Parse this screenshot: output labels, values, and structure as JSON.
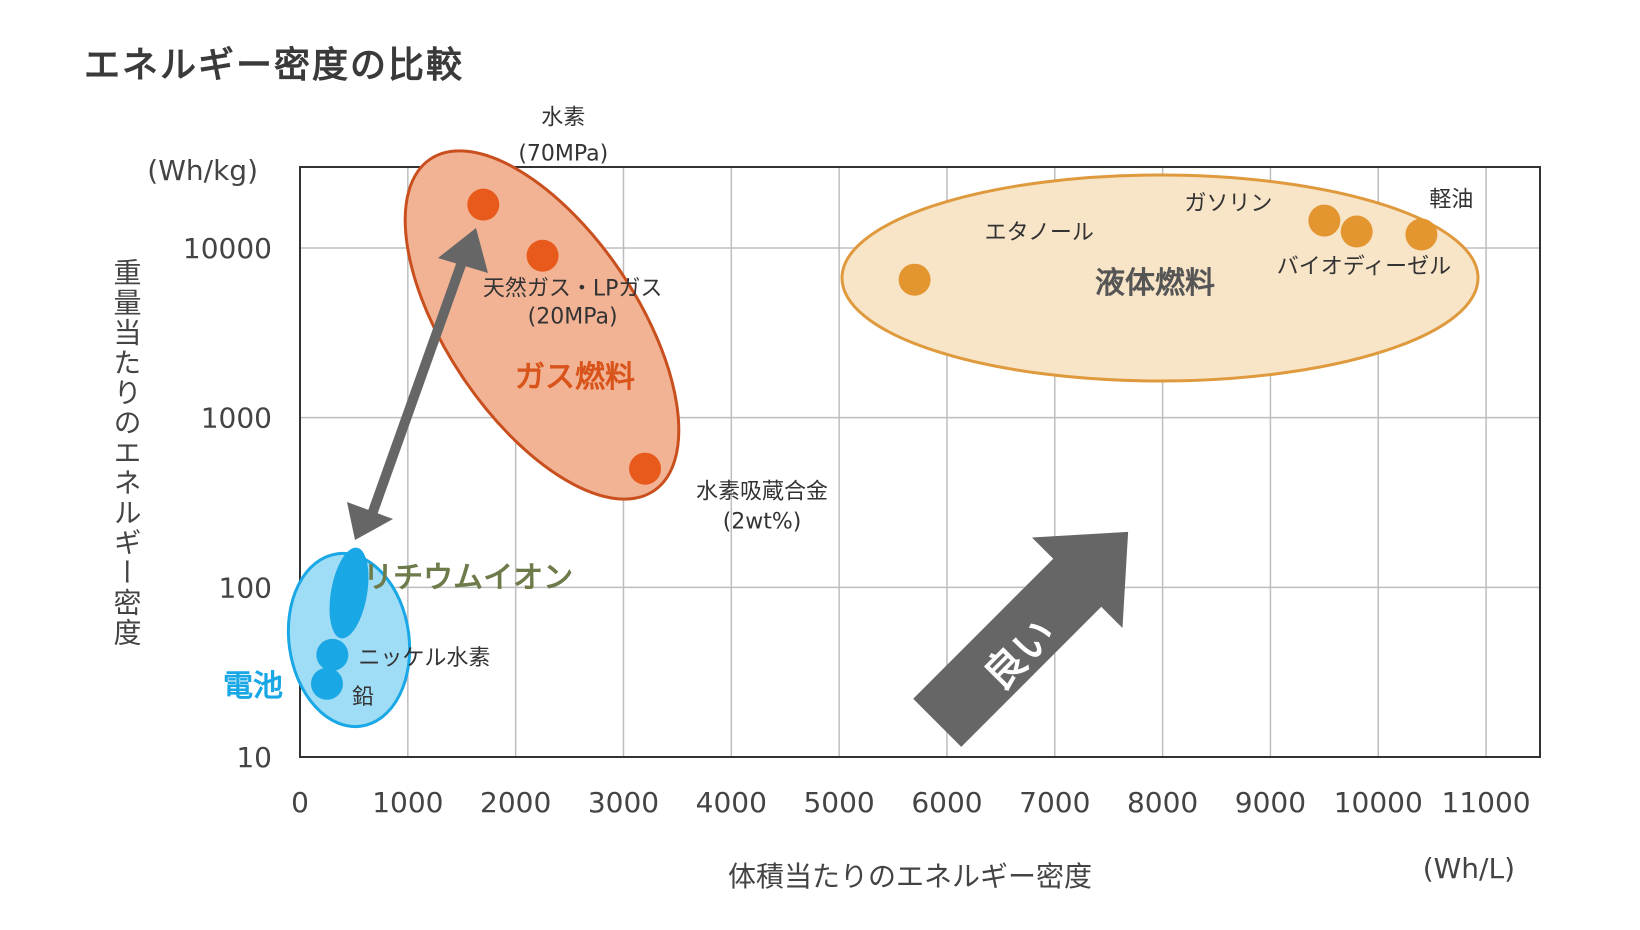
{
  "title": "エネルギー密度の比較",
  "chart_data": {
    "type": "scatter",
    "title": "エネルギー密度の比較",
    "xlabel": "体積当たりのエネルギー密度",
    "ylabel": "重量当たりのエネルギー密度",
    "x_unit": "(Wh/L)",
    "y_unit": "(Wh/kg)",
    "xlim": [
      0,
      11500
    ],
    "ylim": [
      10,
      30000
    ],
    "y_scale": "log",
    "grid": true,
    "x_ticks": [
      "0",
      "1000",
      "2000",
      "3000",
      "4000",
      "5000",
      "6000",
      "7000",
      "8000",
      "9000",
      "10000",
      "11000"
    ],
    "y_ticks": [
      "10",
      "100",
      "1000",
      "10000"
    ],
    "groups": [
      {
        "name": "ガス燃料",
        "color": "#e85a1c"
      },
      {
        "name": "液体燃料",
        "color": "#e3952f"
      },
      {
        "name": "電池",
        "color": "#1aa7e6"
      }
    ],
    "points": [
      {
        "group": "ガス燃料",
        "x": 1700,
        "y": 18000,
        "label": "水素",
        "sublabel": "(70MPa)"
      },
      {
        "group": "ガス燃料",
        "x": 2250,
        "y": 9000,
        "label": "天然ガス・LPガス",
        "sublabel": "(20MPa)"
      },
      {
        "group": "ガス燃料",
        "x": 3200,
        "y": 500,
        "label": "水素吸蔵合金",
        "sublabel": "(2wt%)"
      },
      {
        "group": "液体燃料",
        "x": 5700,
        "y": 6500,
        "label": "エタノール",
        "sublabel": ""
      },
      {
        "group": "液体燃料",
        "x": 9500,
        "y": 14500,
        "label": "ガソリン",
        "sublabel": ""
      },
      {
        "group": "液体燃料",
        "x": 9800,
        "y": 12500,
        "label": "バイオディーゼル",
        "sublabel": ""
      },
      {
        "group": "液体燃料",
        "x": 10400,
        "y": 12000,
        "label": "軽油",
        "sublabel": ""
      },
      {
        "group": "電池",
        "x": 300,
        "y": 40,
        "label": "ニッケル水素",
        "sublabel": ""
      },
      {
        "group": "電池",
        "x": 250,
        "y": 27,
        "label": "鉛",
        "sublabel": ""
      },
      {
        "group": "電池",
        "x": 400,
        "y": 100,
        "label": "リチウムイオン",
        "sublabel": ""
      }
    ],
    "annotations": {
      "better": "良い"
    }
  }
}
